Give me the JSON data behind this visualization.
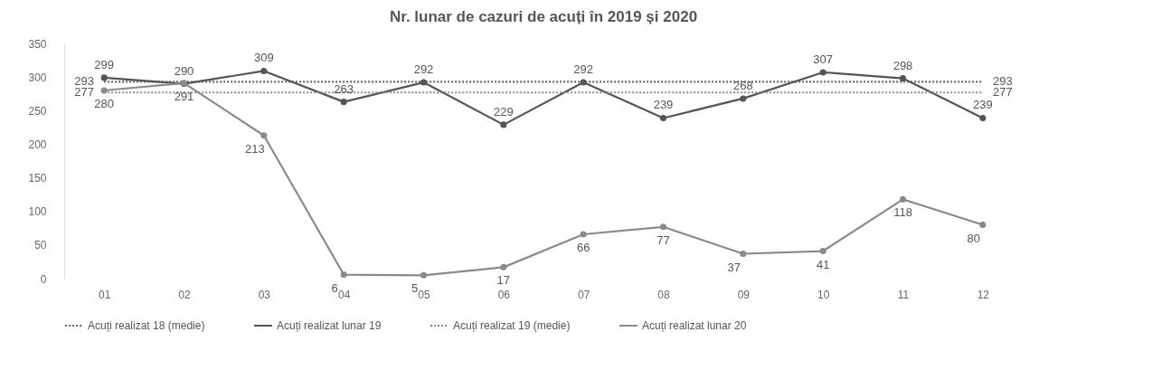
{
  "chart_data": {
    "type": "line",
    "title": "Nr. lunar de cazuri de acuți în 2019 și 2020",
    "categories": [
      "01",
      "02",
      "03",
      "04",
      "05",
      "06",
      "07",
      "08",
      "09",
      "10",
      "11",
      "12"
    ],
    "series": [
      {
        "name": "Acuți realizat 18 (medie)",
        "color": "#666666",
        "line_style": "dotted",
        "marker": "none",
        "values": [
          293,
          293,
          293,
          293,
          293,
          293,
          293,
          293,
          293,
          293,
          293,
          293
        ],
        "value_labels": [
          "293",
          null,
          null,
          null,
          null,
          null,
          null,
          null,
          null,
          null,
          null,
          "293"
        ]
      },
      {
        "name": "Acuți realizat lunar 19",
        "color": "#555555",
        "line_style": "solid",
        "marker": "circle",
        "values": [
          299,
          290,
          309,
          263,
          292,
          229,
          292,
          239,
          268,
          307,
          298,
          239
        ],
        "value_labels": [
          "299",
          "290",
          "309",
          "263",
          "292",
          "229",
          "292",
          "239",
          "268",
          "307",
          "298",
          "239"
        ]
      },
      {
        "name": "Acuți realizat 19 (medie)",
        "color": "#8a8a8a",
        "line_style": "dotted",
        "marker": "none",
        "values": [
          277,
          277,
          277,
          277,
          277,
          277,
          277,
          277,
          277,
          277,
          277,
          277
        ],
        "value_labels": [
          "277",
          null,
          null,
          null,
          null,
          null,
          null,
          null,
          null,
          null,
          null,
          "277"
        ]
      },
      {
        "name": "Acuți realizat lunar 20",
        "color": "#8a8a8a",
        "line_style": "solid",
        "marker": "circle",
        "values": [
          280,
          291,
          213,
          6,
          5,
          17,
          66,
          77,
          37,
          41,
          118,
          80
        ],
        "value_labels": [
          "280",
          "291",
          "213",
          "6",
          "5",
          "17",
          "66",
          "77",
          "37",
          "41",
          "118",
          "80"
        ]
      }
    ],
    "ylim": [
      0,
      350
    ],
    "yticks": [
      0,
      50,
      100,
      150,
      200,
      250,
      300,
      350
    ],
    "grid": false,
    "legend": "bottom"
  }
}
